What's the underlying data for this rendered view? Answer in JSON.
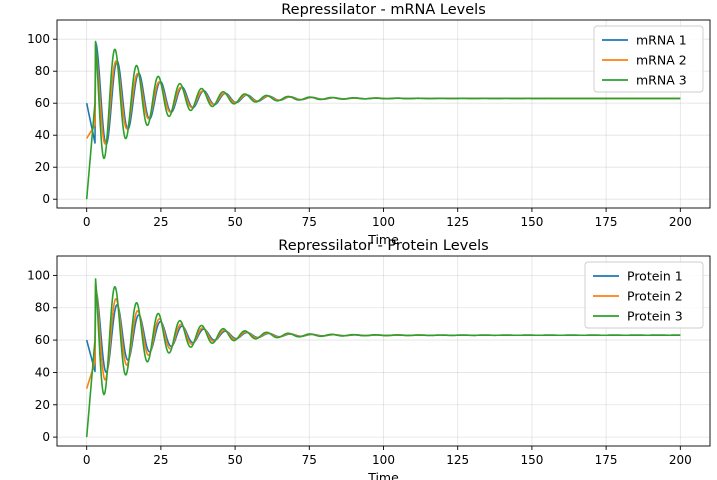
{
  "chart_data": [
    {
      "type": "line",
      "title": "Repressilator - mRNA Levels",
      "xlabel": "Time",
      "ylabel": "",
      "xlim": [
        -10,
        210
      ],
      "ylim": [
        -5.5,
        112
      ],
      "xticks": [
        0,
        25,
        50,
        75,
        100,
        125,
        150,
        175,
        200
      ],
      "yticks": [
        0,
        20,
        40,
        60,
        80,
        100
      ],
      "grid": true,
      "legend": "top-right",
      "series": [
        {
          "name": "mRNA 1",
          "color": "#1f77b4",
          "initial": 60,
          "first_peak": 98,
          "steady": 63,
          "phase": 0.0
        },
        {
          "name": "mRNA 2",
          "color": "#ff7f0e",
          "initial": 38,
          "first_peak": 97,
          "steady": 63,
          "phase": 2.094
        },
        {
          "name": "mRNA 3",
          "color": "#2ca02c",
          "initial": 0,
          "first_peak": 107,
          "steady": 63,
          "phase": 4.189
        }
      ]
    },
    {
      "type": "line",
      "title": "Repressilator - Protein Levels",
      "xlabel": "Time",
      "ylabel": "",
      "xlim": [
        -10,
        210
      ],
      "ylim": [
        -5.5,
        112
      ],
      "xticks": [
        0,
        25,
        50,
        75,
        100,
        125,
        150,
        175,
        200
      ],
      "yticks": [
        0,
        20,
        40,
        60,
        80,
        100
      ],
      "grid": true,
      "legend": "top-right",
      "series": [
        {
          "name": "Protein 1",
          "color": "#1f77b4",
          "initial": 60,
          "first_peak": 91,
          "steady": 63,
          "phase": 0.0
        },
        {
          "name": "Protein 2",
          "color": "#ff7f0e",
          "initial": 30,
          "first_peak": 96,
          "steady": 63,
          "phase": 2.094
        },
        {
          "name": "Protein 3",
          "color": "#2ca02c",
          "initial": 0,
          "first_peak": 106,
          "steady": 63,
          "phase": 4.189
        }
      ]
    }
  ]
}
